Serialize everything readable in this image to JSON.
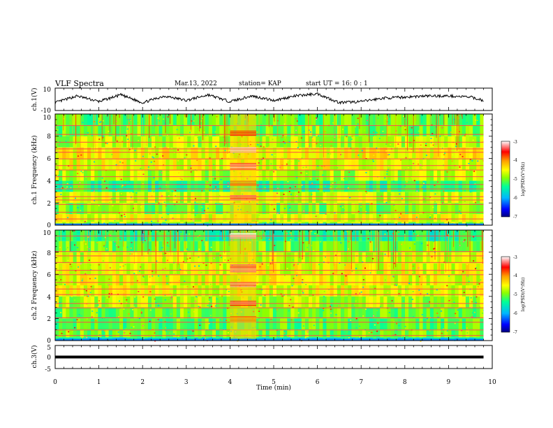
{
  "header": {
    "title": "VLF Spectra",
    "date": "Mar.13, 2022",
    "station": "station= KAP",
    "start": "start  UT =   16: 0  : 1"
  },
  "chart_data": [
    {
      "type": "line",
      "panel": "ch1-waveform",
      "ylabel": "ch.1(V)",
      "ylim": [
        -10,
        10
      ],
      "yticks": [
        "10",
        "-10"
      ],
      "xlim": [
        0,
        10
      ],
      "xlabel": "",
      "x": [
        0.0,
        0.5,
        1.0,
        1.5,
        2.0,
        2.5,
        3.0,
        3.5,
        4.0,
        4.5,
        5.0,
        5.5,
        6.0,
        6.5,
        7.0,
        7.5,
        8.0,
        8.5,
        9.0,
        9.5,
        9.8
      ],
      "y": [
        -3,
        3,
        -2,
        4,
        -3,
        3,
        -1,
        4,
        -2,
        3,
        -1,
        3,
        5,
        -3,
        -2,
        1,
        2,
        3,
        3,
        2,
        -1
      ],
      "color": "#000000"
    },
    {
      "type": "heatmap",
      "panel": "ch1-spectrogram",
      "ylabel": "ch.1 Frequency (kHz)",
      "ylim": [
        0,
        10
      ],
      "yticks": [
        "0",
        "2",
        "4",
        "6",
        "8",
        "10"
      ],
      "xlim": [
        0,
        9.8
      ],
      "colorbar": {
        "label": "log(PSD)(V²/Hz)",
        "range": [
          -7,
          -3
        ],
        "ticks": [
          "-3",
          "-4",
          "-5",
          "-6",
          "-7"
        ]
      },
      "strong_band_minutes": [
        4.0,
        4.6
      ],
      "bands": [
        {
          "f_from": 0.0,
          "f_to": 0.3,
          "level": -4.8
        },
        {
          "f_from": 0.3,
          "f_to": 1.0,
          "level": -4.6
        },
        {
          "f_from": 1.0,
          "f_to": 2.0,
          "level": -5.0
        },
        {
          "f_from": 2.0,
          "f_to": 3.0,
          "level": -4.7
        },
        {
          "f_from": 3.0,
          "f_to": 4.0,
          "level": -5.3
        },
        {
          "f_from": 4.0,
          "f_to": 5.0,
          "level": -4.8
        },
        {
          "f_from": 5.0,
          "f_to": 6.0,
          "level": -4.6
        },
        {
          "f_from": 6.0,
          "f_to": 7.0,
          "level": -4.5
        },
        {
          "f_from": 7.0,
          "f_to": 8.0,
          "level": -4.8
        },
        {
          "f_from": 8.0,
          "f_to": 9.0,
          "level": -5.0
        },
        {
          "f_from": 9.0,
          "f_to": 10.0,
          "level": -5.1
        }
      ],
      "lines_khz": [
        0.6,
        1.2,
        1.9,
        2.3,
        2.6,
        3.3,
        3.7,
        4.4,
        5.0,
        5.4,
        6.0,
        6.6,
        6.9,
        7.5,
        8.2,
        9.0
      ],
      "burst_levels": [
        {
          "f_from": 6.5,
          "f_to": 7.0,
          "level": -3.2
        },
        {
          "f_from": 5.0,
          "f_to": 5.6,
          "level": -3.3
        },
        {
          "f_from": 2.2,
          "f_to": 2.7,
          "level": -3.4
        },
        {
          "f_from": 8.0,
          "f_to": 8.5,
          "level": -3.8
        },
        {
          "f_from": 3.6,
          "f_to": 4.0,
          "level": -3.9
        }
      ]
    },
    {
      "type": "heatmap",
      "panel": "ch2-spectrogram",
      "ylabel": "ch.2 Frequency (kHz)",
      "ylim": [
        0,
        10
      ],
      "yticks": [
        "0",
        "2",
        "4",
        "6",
        "8",
        "10"
      ],
      "xlim": [
        0,
        9.8
      ],
      "colorbar": {
        "label": "log(PSD)(V²/Hz)",
        "range": [
          -7,
          -3
        ],
        "ticks": [
          "-3",
          "-4",
          "-5",
          "-6",
          "-7"
        ]
      },
      "strong_band_minutes": [
        4.0,
        4.6
      ],
      "bands": [
        {
          "f_from": 0.0,
          "f_to": 0.3,
          "level": -5.6
        },
        {
          "f_from": 0.3,
          "f_to": 1.0,
          "level": -5.0
        },
        {
          "f_from": 1.0,
          "f_to": 2.0,
          "level": -5.1
        },
        {
          "f_from": 2.0,
          "f_to": 3.0,
          "level": -5.0
        },
        {
          "f_from": 3.0,
          "f_to": 4.0,
          "level": -4.8
        },
        {
          "f_from": 4.0,
          "f_to": 5.0,
          "level": -4.6
        },
        {
          "f_from": 5.0,
          "f_to": 6.0,
          "level": -4.6
        },
        {
          "f_from": 6.0,
          "f_to": 7.0,
          "level": -4.6
        },
        {
          "f_from": 7.0,
          "f_to": 8.0,
          "level": -4.7
        },
        {
          "f_from": 8.0,
          "f_to": 9.0,
          "level": -5.0
        },
        {
          "f_from": 9.0,
          "f_to": 10.0,
          "level": -5.4
        }
      ],
      "lines_khz": [
        0.5,
        1.0,
        1.7,
        2.1,
        3.0,
        3.4,
        4.2,
        4.7,
        5.3,
        6.0,
        6.4,
        7.1,
        7.7,
        8.1,
        9.5
      ],
      "burst_levels": [
        {
          "f_from": 9.2,
          "f_to": 9.7,
          "level": -3.1
        },
        {
          "f_from": 6.2,
          "f_to": 6.9,
          "level": -3.3
        },
        {
          "f_from": 4.8,
          "f_to": 5.3,
          "level": -3.3
        },
        {
          "f_from": 3.2,
          "f_to": 3.6,
          "level": -3.5
        },
        {
          "f_from": 1.8,
          "f_to": 2.2,
          "level": -3.9
        }
      ]
    },
    {
      "type": "line",
      "panel": "ch3-waveform",
      "ylabel": "ch.3(V)",
      "ylim": [
        -5,
        5
      ],
      "yticks": [
        "5",
        "0",
        "-5"
      ],
      "xlim": [
        0,
        10
      ],
      "xlabel": "Time  (min)",
      "xticks": [
        "0",
        "1",
        "2",
        "3",
        "4",
        "5",
        "6",
        "7",
        "8",
        "9",
        "10"
      ],
      "x": [
        0,
        9.8
      ],
      "y": [
        0,
        0
      ],
      "band_halfwidth_v": 0.6,
      "color": "#000000"
    }
  ],
  "colors": {
    "line": "#000000",
    "colormap": [
      "#0000ff",
      "#00b7ff",
      "#00ff99",
      "#8cff00",
      "#ffff00",
      "#ffa000",
      "#ff0000",
      "#ffffff"
    ]
  }
}
